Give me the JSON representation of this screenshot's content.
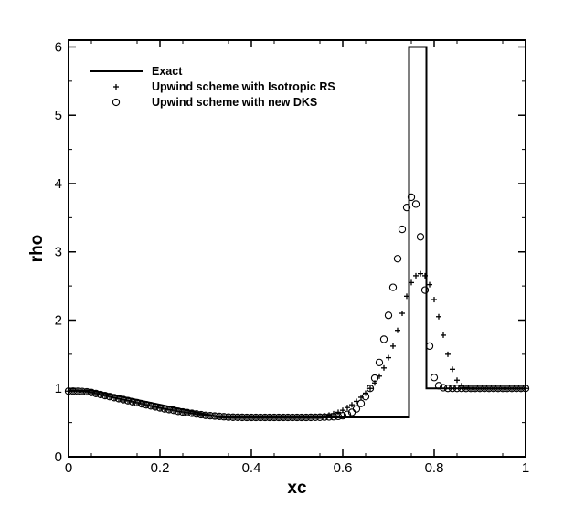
{
  "chart_data": {
    "type": "line",
    "xlabel": "xc",
    "ylabel": "rho",
    "xlim": [
      0,
      1
    ],
    "ylim": [
      0,
      6.1
    ],
    "x_ticks": [
      "0",
      "0.2",
      "0.4",
      "0.6",
      "0.8",
      "1"
    ],
    "y_ticks": [
      "0",
      "1",
      "2",
      "3",
      "4",
      "5",
      "6"
    ],
    "legend_position": "top-left",
    "grid": false,
    "series": [
      {
        "name": "Exact",
        "style": "line",
        "x": [
          0,
          0.05,
          0.333,
          0.733,
          0.733,
          0.745,
          0.745,
          0.783,
          0.783,
          1.0
        ],
        "y": [
          0.97,
          0.97,
          0.575,
          0.575,
          0.575,
          0.575,
          6.0,
          6.0,
          1.0,
          1.0
        ]
      },
      {
        "name": "Upwind scheme with Isotropic RS",
        "style": "plus",
        "x": [
          0,
          0.01,
          0.02,
          0.03,
          0.04,
          0.05,
          0.06,
          0.07,
          0.08,
          0.09,
          0.1,
          0.11,
          0.12,
          0.13,
          0.14,
          0.15,
          0.16,
          0.17,
          0.18,
          0.19,
          0.2,
          0.21,
          0.22,
          0.23,
          0.24,
          0.25,
          0.26,
          0.27,
          0.28,
          0.29,
          0.3,
          0.31,
          0.32,
          0.33,
          0.34,
          0.35,
          0.36,
          0.37,
          0.38,
          0.39,
          0.4,
          0.41,
          0.42,
          0.43,
          0.44,
          0.45,
          0.46,
          0.47,
          0.48,
          0.49,
          0.5,
          0.51,
          0.52,
          0.53,
          0.54,
          0.55,
          0.56,
          0.57,
          0.58,
          0.59,
          0.6,
          0.61,
          0.62,
          0.63,
          0.64,
          0.65,
          0.66,
          0.67,
          0.68,
          0.69,
          0.7,
          0.71,
          0.72,
          0.73,
          0.74,
          0.75,
          0.76,
          0.77,
          0.78,
          0.79,
          0.8,
          0.81,
          0.82,
          0.83,
          0.84,
          0.85,
          0.86,
          0.87,
          0.88,
          0.89,
          0.9,
          0.91,
          0.92,
          0.93,
          0.94,
          0.95,
          0.96,
          0.97,
          0.98,
          0.99,
          1.0
        ],
        "y": [
          0.96,
          0.96,
          0.96,
          0.955,
          0.95,
          0.94,
          0.925,
          0.91,
          0.895,
          0.88,
          0.865,
          0.85,
          0.835,
          0.82,
          0.805,
          0.79,
          0.775,
          0.76,
          0.745,
          0.73,
          0.715,
          0.7,
          0.69,
          0.68,
          0.665,
          0.655,
          0.645,
          0.635,
          0.625,
          0.615,
          0.605,
          0.6,
          0.595,
          0.59,
          0.585,
          0.58,
          0.58,
          0.578,
          0.577,
          0.576,
          0.575,
          0.575,
          0.575,
          0.575,
          0.575,
          0.575,
          0.575,
          0.575,
          0.575,
          0.575,
          0.575,
          0.576,
          0.578,
          0.58,
          0.585,
          0.59,
          0.6,
          0.61,
          0.63,
          0.65,
          0.68,
          0.72,
          0.76,
          0.81,
          0.87,
          0.93,
          1.0,
          1.08,
          1.18,
          1.3,
          1.45,
          1.62,
          1.85,
          2.1,
          2.35,
          2.55,
          2.65,
          2.68,
          2.65,
          2.52,
          2.3,
          2.05,
          1.78,
          1.5,
          1.28,
          1.12,
          1.04,
          1.01,
          1.0,
          1.0,
          1.0,
          1.0,
          1.0,
          1.0,
          1.0,
          1.0,
          1.0,
          1.0,
          1.0,
          1.0,
          1.0
        ]
      },
      {
        "name": "Upwind scheme with new DKS",
        "style": "circle",
        "x": [
          0,
          0.01,
          0.02,
          0.03,
          0.04,
          0.05,
          0.06,
          0.07,
          0.08,
          0.09,
          0.1,
          0.11,
          0.12,
          0.13,
          0.14,
          0.15,
          0.16,
          0.17,
          0.18,
          0.19,
          0.2,
          0.21,
          0.22,
          0.23,
          0.24,
          0.25,
          0.26,
          0.27,
          0.28,
          0.29,
          0.3,
          0.31,
          0.32,
          0.33,
          0.34,
          0.35,
          0.36,
          0.37,
          0.38,
          0.39,
          0.4,
          0.41,
          0.42,
          0.43,
          0.44,
          0.45,
          0.46,
          0.47,
          0.48,
          0.49,
          0.5,
          0.51,
          0.52,
          0.53,
          0.54,
          0.55,
          0.56,
          0.57,
          0.58,
          0.59,
          0.6,
          0.61,
          0.62,
          0.63,
          0.64,
          0.65,
          0.66,
          0.67,
          0.68,
          0.69,
          0.7,
          0.71,
          0.72,
          0.73,
          0.74,
          0.75,
          0.76,
          0.77,
          0.78,
          0.79,
          0.8,
          0.81,
          0.82,
          0.83,
          0.84,
          0.85,
          0.86,
          0.87,
          0.88,
          0.89,
          0.9,
          0.91,
          0.92,
          0.93,
          0.94,
          0.95,
          0.96,
          0.97,
          0.98,
          0.99,
          1.0
        ],
        "y": [
          0.96,
          0.96,
          0.958,
          0.955,
          0.95,
          0.94,
          0.925,
          0.91,
          0.895,
          0.88,
          0.865,
          0.85,
          0.835,
          0.82,
          0.805,
          0.79,
          0.775,
          0.76,
          0.745,
          0.73,
          0.715,
          0.7,
          0.69,
          0.68,
          0.665,
          0.655,
          0.645,
          0.635,
          0.625,
          0.615,
          0.605,
          0.6,
          0.595,
          0.59,
          0.585,
          0.58,
          0.578,
          0.577,
          0.576,
          0.575,
          0.575,
          0.575,
          0.575,
          0.575,
          0.575,
          0.575,
          0.575,
          0.575,
          0.575,
          0.575,
          0.575,
          0.575,
          0.575,
          0.576,
          0.577,
          0.578,
          0.58,
          0.582,
          0.585,
          0.59,
          0.6,
          0.62,
          0.65,
          0.7,
          0.78,
          0.88,
          1.0,
          1.15,
          1.38,
          1.72,
          2.07,
          2.48,
          2.9,
          3.33,
          3.65,
          3.8,
          3.7,
          3.22,
          2.44,
          1.62,
          1.16,
          1.04,
          1.01,
          1.0,
          1.0,
          1.0,
          1.0,
          1.0,
          1.0,
          1.0,
          1.0,
          1.0,
          1.0,
          1.0,
          1.0,
          1.0,
          1.0,
          1.0,
          1.0,
          1.0,
          1.0
        ]
      }
    ]
  }
}
